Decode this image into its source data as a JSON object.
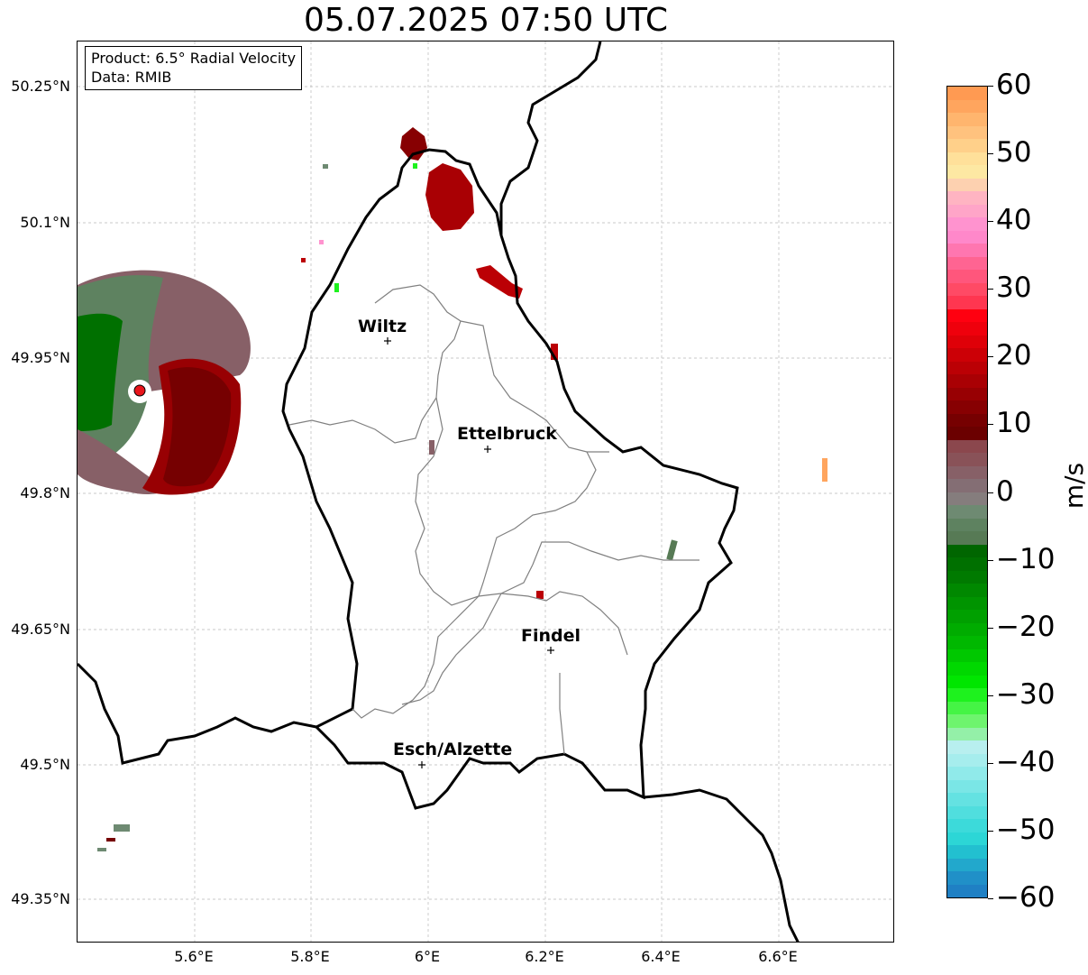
{
  "title": "05.07.2025 07:50 UTC",
  "info_box": {
    "product": "Product: 6.5° Radial Velocity",
    "source": "Data: RMIB"
  },
  "map": {
    "lon_range": [
      5.4,
      6.8
    ],
    "lat_range": [
      49.3,
      50.3
    ],
    "lon_ticks": [
      "5.6°E",
      "5.8°E",
      "6°E",
      "6.2°E",
      "6.4°E",
      "6.6°E"
    ],
    "lat_ticks": [
      "50.25°N",
      "50.1°N",
      "49.95°N",
      "49.8°N",
      "49.65°N",
      "49.5°N",
      "49.35°N"
    ],
    "gridlines": "dashed-grey",
    "cities": [
      {
        "name": "Wiltz",
        "lon": 5.93,
        "lat": 49.97
      },
      {
        "name": "Ettelbruck",
        "lon": 6.1,
        "lat": 49.85
      },
      {
        "name": "Findel",
        "lon": 6.21,
        "lat": 49.63
      },
      {
        "name": "Esch/Alzette",
        "lon": 5.99,
        "lat": 49.5
      }
    ],
    "radar_site": {
      "lon": 5.5,
      "lat": 49.915,
      "color": "#e8151b"
    }
  },
  "colorbar": {
    "label": "m/s",
    "ticks": [
      "60",
      "50",
      "40",
      "30",
      "20",
      "10",
      "0",
      "−10",
      "−20",
      "−30",
      "−40",
      "−50",
      "−60"
    ],
    "range": [
      -60,
      60
    ],
    "colors": [
      "#ff9a52",
      "#ffa55e",
      "#ffb56e",
      "#ffc27e",
      "#ffd08a",
      "#ffe09a",
      "#fde8a3",
      "#fdd1b0",
      "#ffb4c2",
      "#ffa5c8",
      "#ff93cf",
      "#ff88ca",
      "#ff76b0",
      "#ff6492",
      "#ff567c",
      "#ff4a65",
      "#ff3650",
      "#ff0010",
      "#ef000c",
      "#df0008",
      "#cc0006",
      "#bb0005",
      "#a90004",
      "#980003",
      "#870002",
      "#760001",
      "#6b0000",
      "#8b474d",
      "#895258",
      "#876067",
      "#846e74",
      "#857d7d",
      "#6e8a72",
      "#5e8260",
      "#577a55",
      "#006600",
      "#007000",
      "#007a00",
      "#008800",
      "#009400",
      "#00a000",
      "#00ac00",
      "#00b800",
      "#00c800",
      "#00d800",
      "#00e600",
      "#1ef21e",
      "#45f445",
      "#6ef46e",
      "#94f0a8",
      "#b8efef",
      "#a6eded",
      "#90eaea",
      "#7ae6e6",
      "#64e2e2",
      "#50dede",
      "#3cdada",
      "#2cd6d6",
      "#22c0d0",
      "#22a8cc",
      "#2090c8",
      "#1f80c4"
    ]
  }
}
